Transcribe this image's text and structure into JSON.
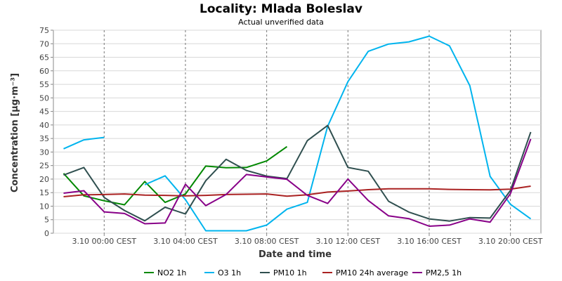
{
  "chart_data": {
    "type": "line",
    "title": "Locality: Mlada Boleslav",
    "subtitle": "Actual unverified data",
    "xlabel": "Date and time",
    "ylabel": "Concentration [µg·m⁻³]",
    "ylim": [
      0,
      75
    ],
    "yticks": [
      0,
      5,
      10,
      15,
      20,
      25,
      30,
      35,
      40,
      45,
      50,
      55,
      60,
      65,
      70,
      75
    ],
    "xlim": [
      "2.10 21:30",
      "3.10 21:30"
    ],
    "x": [
      "2.10 22:00",
      "2.10 23:00",
      "3.10 00:00",
      "3.10 01:00",
      "3.10 02:00",
      "3.10 03:00",
      "3.10 04:00",
      "3.10 05:00",
      "3.10 06:00",
      "3.10 07:00",
      "3.10 08:00",
      "3.10 09:00",
      "3.10 10:00",
      "3.10 11:00",
      "3.10 12:00",
      "3.10 13:00",
      "3.10 14:00",
      "3.10 15:00",
      "3.10 16:00",
      "3.10 17:00",
      "3.10 18:00",
      "3.10 19:00",
      "3.10 20:00",
      "3.10 21:00"
    ],
    "xtick_labels": [
      {
        "at": "3.10 00:00",
        "label": "3.10 00:00 CEST"
      },
      {
        "at": "3.10 04:00",
        "label": "3.10 04:00 CEST"
      },
      {
        "at": "3.10 08:00",
        "label": "3.10 08:00 CEST"
      },
      {
        "at": "3.10 12:00",
        "label": "3.10 12:00 CEST"
      },
      {
        "at": "3.10 16:00",
        "label": "3.10 16:00 CEST"
      },
      {
        "at": "3.10 20:00",
        "label": "3.10 20:00 CEST"
      }
    ],
    "grid": true,
    "legend_position": "bottom",
    "series": [
      {
        "name": "NO2 1h",
        "color": "#008800",
        "values": [
          22.1,
          13.8,
          12.0,
          10.5,
          19.1,
          11.4,
          14.5,
          24.8,
          24.2,
          24.3,
          26.7,
          32.0,
          null,
          null,
          null,
          null,
          null,
          null,
          null,
          null,
          null,
          null,
          null,
          null
        ]
      },
      {
        "name": "O3 1h",
        "color": "#00b4ee",
        "values": [
          31.2,
          34.5,
          35.4,
          null,
          17.9,
          21.2,
          12.4,
          0.9,
          0.9,
          0.9,
          3.0,
          8.9,
          11.4,
          39.5,
          56.0,
          67.2,
          69.9,
          70.7,
          72.8,
          69.2,
          54.5,
          21.0,
          10.7,
          5.3
        ]
      },
      {
        "name": "PM10 1h",
        "color": "#2f4f4f",
        "values": [
          21.5,
          24.3,
          13.2,
          8.4,
          4.6,
          9.6,
          7.1,
          19.4,
          27.3,
          23.2,
          21.1,
          20.2,
          34.2,
          39.8,
          24.3,
          22.9,
          11.8,
          7.8,
          5.3,
          4.5,
          5.8,
          5.6,
          15.8,
          37.4
        ]
      },
      {
        "name": "PM10 24h average",
        "color": "#aa2222",
        "values": [
          13.5,
          14.2,
          14.3,
          14.5,
          14.1,
          14.0,
          13.8,
          14.0,
          14.3,
          14.4,
          14.5,
          13.7,
          14.2,
          15.2,
          15.6,
          16.1,
          16.4,
          16.4,
          16.4,
          16.2,
          16.1,
          16.0,
          16.3,
          17.4
        ]
      },
      {
        "name": "PM2,5 1h",
        "color": "#880088",
        "values": [
          14.8,
          15.7,
          7.9,
          7.3,
          3.5,
          3.8,
          18.1,
          10.2,
          14.3,
          21.7,
          20.8,
          19.9,
          14.0,
          11.0,
          20.0,
          12.1,
          6.4,
          5.4,
          2.6,
          3.0,
          5.3,
          4.1,
          14.6,
          34.8
        ]
      }
    ]
  }
}
